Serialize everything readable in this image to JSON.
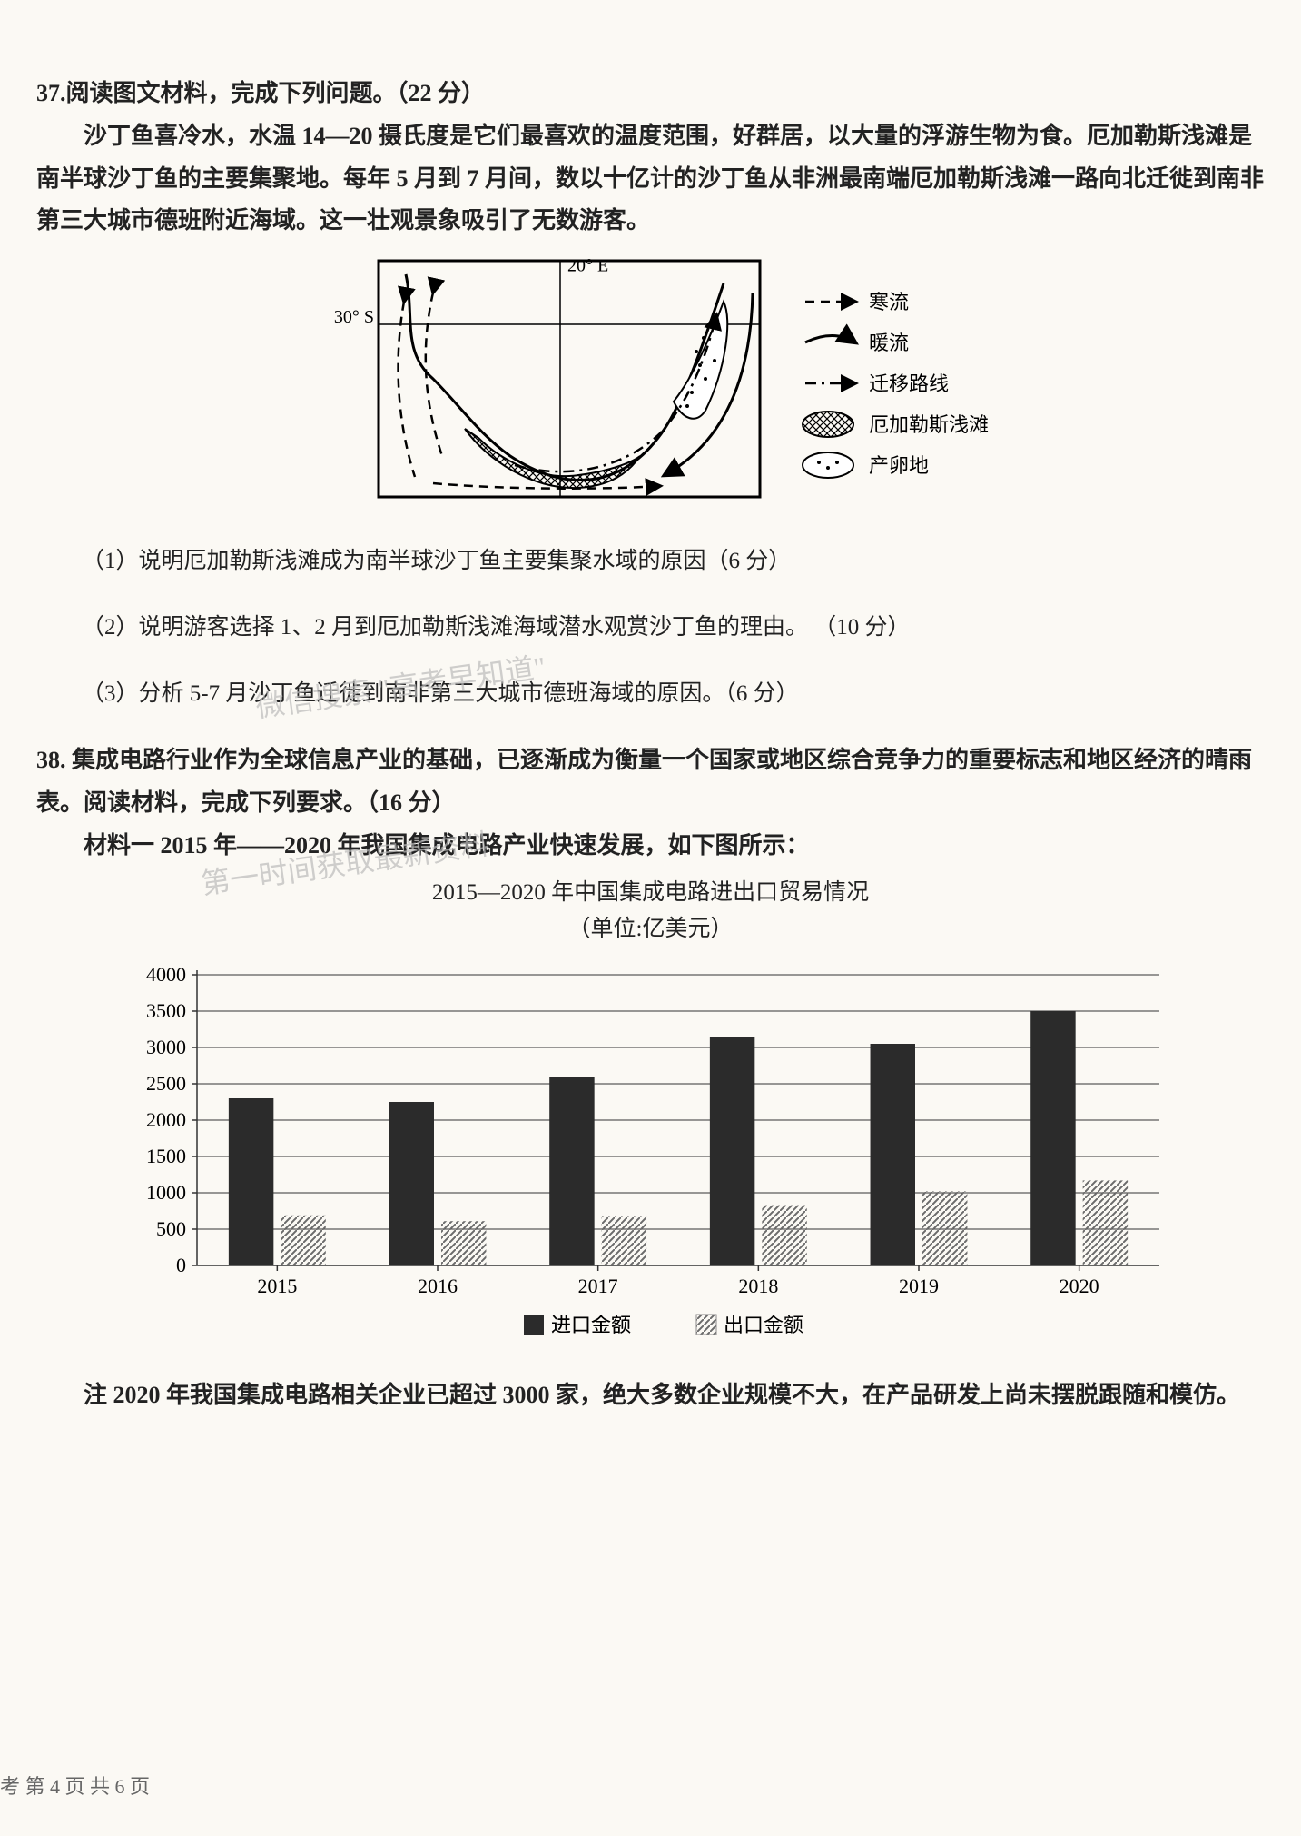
{
  "q37": {
    "title": "37.阅读图文材料，完成下列问题。（22 分）",
    "para": "沙丁鱼喜冷水，水温 14—20 摄氏度是它们最喜欢的温度范围，好群居，以大量的浮游生物为食。厄加勒斯浅滩是南半球沙丁鱼的主要集聚地。每年 5 月到 7 月间，数以十亿计的沙丁鱼从非洲最南端厄加勒斯浅滩一路向北迁徙到南非第三大城市德班附近海域。这一壮观景象吸引了无数游客。",
    "map": {
      "top_lon_label": "20° E",
      "left_lat_label": "30° S",
      "legend": [
        {
          "symbol": "dash-arrow",
          "text": "寒流"
        },
        {
          "symbol": "solid-arrow",
          "text": "暖流"
        },
        {
          "symbol": "dash-dot-arrow",
          "text": "迁移路线"
        },
        {
          "symbol": "crosshatch",
          "text": "厄加勒斯浅滩"
        },
        {
          "symbol": "dots",
          "text": "产卵地"
        }
      ],
      "border_color": "#000000",
      "land_stroke": "#000000"
    },
    "sub1": "（1）说明厄加勒斯浅滩成为南半球沙丁鱼主要集聚水域的原因（6 分）",
    "sub2": "（2）说明游客选择 1、2 月到厄加勒斯浅滩海域潜水观赏沙丁鱼的理由。 （10 分）",
    "sub3": "（3）分析 5-7 月沙丁鱼迁徙到南非第三大城市德班海域的原因。（6 分）"
  },
  "q38": {
    "title": "38. 集成电路行业作为全球信息产业的基础，已逐渐成为衡量一个国家或地区综合竞争力的重要标志和地区经济的晴雨表。阅读材料，完成下列要求。（16 分）",
    "material1": "材料一  2015 年——2020 年我国集成电路产业快速发展，如下图所示：",
    "chart": {
      "title_line1": "2015—2020 年中国集成电路进出口贸易情况",
      "title_line2": "（单位:亿美元）",
      "type": "grouped-bar",
      "categories": [
        "2015",
        "2016",
        "2017",
        "2018",
        "2019",
        "2020"
      ],
      "series": [
        {
          "name": "进口金额",
          "values": [
            2300,
            2250,
            2600,
            3150,
            3050,
            3500
          ],
          "fill": "solid",
          "color": "#2b2b2b"
        },
        {
          "name": "出口金额",
          "values": [
            690,
            610,
            670,
            830,
            1020,
            1170
          ],
          "fill": "hatch",
          "color": "#6b6b6b"
        }
      ],
      "ylim": [
        0,
        4000
      ],
      "ytick_step": 500,
      "axis_color": "#333333",
      "grid_color": "#333333",
      "bar_width": 0.6,
      "background_color": "#fbf9f4",
      "font_size_axis": 22,
      "legend": {
        "import_label": "进口金额",
        "export_label": "出口金额"
      }
    },
    "note": "注  2020 年我国集成电路相关企业已超过 3000 家，绝大多数企业规模不大，在产品研发上尚未摆脱跟随和模仿。"
  },
  "watermarks": {
    "w1": "微信搜索              \"高考早知道\"",
    "w2": "第一时间获取最新资料"
  },
  "page_footer": "考 第 4 页  共 6 页"
}
